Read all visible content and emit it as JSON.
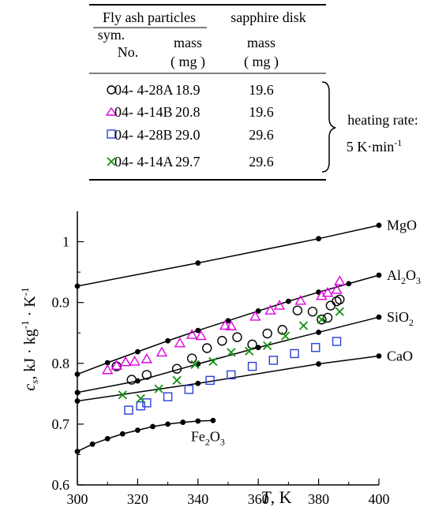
{
  "table": {
    "group_header": "Fly ash particles",
    "sapphire_header": "sapphire disk",
    "sym_header": "sym.",
    "no_header": "No.",
    "mass_label": "mass",
    "unit_label": "( mg )",
    "rows": [
      {
        "symbol": "circle",
        "color": "#000000",
        "no": "04- 4-28A",
        "mass": "18.9",
        "sapphire_mass": "19.6"
      },
      {
        "symbol": "triangle",
        "color": "#e000e0",
        "no": "04- 4-14B",
        "mass": "20.8",
        "sapphire_mass": "19.6"
      },
      {
        "symbol": "square",
        "color": "#2a3fd8",
        "no": "04- 4-28B",
        "mass": "29.0",
        "sapphire_mass": "29.6"
      },
      {
        "symbol": "cross",
        "color": "#139013",
        "no": "04- 4-14A",
        "mass": "29.7",
        "sapphire_mass": "29.6"
      }
    ],
    "heating_rate_label": "heating rate:",
    "heating_rate_value": "5 K·min",
    "heating_rate_exp": "-1"
  },
  "chart_data": {
    "type": "scatter",
    "xlabel": "T,  K",
    "ylabel": "c_s, kJ · kg⁻¹ · K⁻¹",
    "xlim": [
      300,
      400
    ],
    "ylim": [
      0.6,
      1.05
    ],
    "xticks": [
      300,
      320,
      340,
      360,
      380,
      400
    ],
    "yticks": [
      0.6,
      0.7,
      0.8,
      0.9,
      1.0
    ],
    "ytick_labels": [
      "0.6",
      "0.7",
      "0.8",
      "0.9",
      "1"
    ],
    "reference_lines": [
      {
        "name": "MgO",
        "label_main": "MgO",
        "label_sub": "",
        "color": "#000000",
        "x": [
          300,
          340,
          380,
          400
        ],
        "y": [
          0.927,
          0.965,
          1.005,
          1.027
        ]
      },
      {
        "name": "Al2O3",
        "label_main": "Al",
        "label_sub": "2",
        "label_main2": "O",
        "label_sub2": "3",
        "color": "#000000",
        "x": [
          300,
          310,
          320,
          330,
          340,
          350,
          360,
          370,
          380,
          390,
          400
        ],
        "y": [
          0.782,
          0.801,
          0.819,
          0.837,
          0.854,
          0.87,
          0.886,
          0.902,
          0.917,
          0.931,
          0.945
        ]
      },
      {
        "name": "SiO2",
        "label_main": "SiO",
        "label_sub": "2",
        "color": "#000000",
        "x": [
          300,
          320,
          340,
          360,
          380,
          400
        ],
        "y": [
          0.752,
          0.771,
          0.799,
          0.826,
          0.851,
          0.876
        ]
      },
      {
        "name": "CaO",
        "label_main": "CaO",
        "label_sub": "",
        "color": "#000000",
        "x": [
          300,
          340,
          380,
          400
        ],
        "y": [
          0.738,
          0.767,
          0.799,
          0.812
        ]
      },
      {
        "name": "Fe2O3",
        "label_main": "Fe",
        "label_sub": "2",
        "label_main2": "O",
        "label_sub2": "3",
        "color": "#000000",
        "x": [
          300,
          305,
          310,
          315,
          320,
          325,
          330,
          335,
          340,
          345
        ],
        "y": [
          0.655,
          0.667,
          0.676,
          0.684,
          0.69,
          0.696,
          0.7,
          0.703,
          0.705,
          0.706
        ]
      }
    ],
    "series": [
      {
        "name": "04- 4-28A",
        "marker": "circle",
        "color": "#000000",
        "x": [
          313,
          318,
          323,
          333,
          338,
          343,
          348,
          353,
          358,
          363,
          368,
          373,
          378,
          381,
          383,
          384,
          386,
          387
        ],
        "y": [
          0.795,
          0.773,
          0.781,
          0.791,
          0.808,
          0.825,
          0.837,
          0.843,
          0.831,
          0.849,
          0.855,
          0.887,
          0.885,
          0.872,
          0.875,
          0.895,
          0.902,
          0.905
        ]
      },
      {
        "name": "04- 4-14B",
        "marker": "triangle",
        "color": "#e000e0",
        "x": [
          310,
          313,
          316,
          319,
          323,
          328,
          334,
          338,
          341,
          349,
          351,
          359,
          364,
          367,
          374,
          381,
          383,
          386,
          387
        ],
        "y": [
          0.789,
          0.796,
          0.802,
          0.803,
          0.807,
          0.818,
          0.833,
          0.847,
          0.845,
          0.862,
          0.861,
          0.877,
          0.887,
          0.895,
          0.903,
          0.911,
          0.916,
          0.921,
          0.935
        ]
      },
      {
        "name": "04- 4-28B",
        "marker": "square",
        "color": "#2a3fd8",
        "x": [
          317,
          321,
          323,
          330,
          337,
          344,
          351,
          358,
          365,
          372,
          379,
          386
        ],
        "y": [
          0.723,
          0.73,
          0.735,
          0.745,
          0.757,
          0.772,
          0.781,
          0.795,
          0.805,
          0.816,
          0.826,
          0.836
        ]
      },
      {
        "name": "04- 4-14A",
        "marker": "cross",
        "color": "#139013",
        "x": [
          315,
          321,
          327,
          333,
          339,
          345,
          351,
          357,
          363,
          369,
          375,
          381,
          387
        ],
        "y": [
          0.748,
          0.742,
          0.758,
          0.772,
          0.798,
          0.803,
          0.818,
          0.82,
          0.829,
          0.845,
          0.862,
          0.872,
          0.885
        ]
      }
    ]
  }
}
